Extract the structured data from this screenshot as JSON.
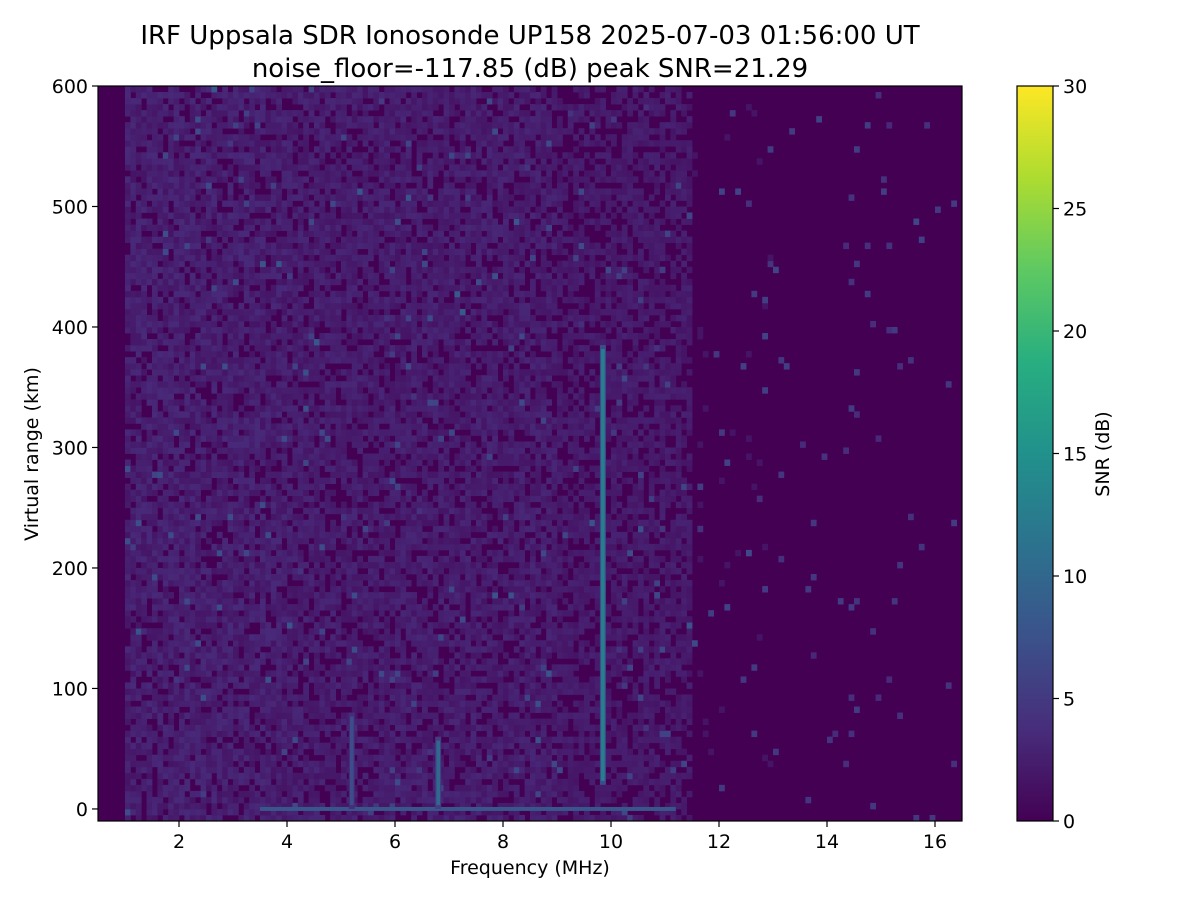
{
  "chart_data": {
    "type": "heatmap",
    "title_line1": "IRF Uppsala SDR Ionosonde UP158 2025-07-03 01:56:00  UT",
    "title_line2": "noise_floor=-117.85 (dB) peak SNR=21.29",
    "xlabel": "Frequency (MHz)",
    "ylabel": "Virtual range (km)",
    "xlim": [
      0.5,
      16.5
    ],
    "ylim": [
      -10,
      600
    ],
    "xticks": [
      2,
      4,
      6,
      8,
      10,
      12,
      14,
      16
    ],
    "yticks": [
      0,
      100,
      200,
      300,
      400,
      500,
      600
    ],
    "colorbar": {
      "label": "SNR (dB)",
      "colormap": "viridis",
      "range": [
        0,
        30
      ],
      "ticks": [
        0,
        5,
        10,
        15,
        20,
        25,
        30
      ]
    },
    "noise_floor_db": -117.85,
    "peak_snr_db": 21.29,
    "features": [
      {
        "name": "strong echo trace",
        "freq_mhz": 9.85,
        "range_km": [
          20,
          385
        ],
        "snr_db": 13
      },
      {
        "name": "ground-level echoes",
        "freq_mhz": [
          3.5,
          11.2
        ],
        "range_km": 0,
        "snr_db": 8
      },
      {
        "name": "near-range echo",
        "freq_mhz": 6.8,
        "range_km": [
          0,
          60
        ],
        "snr_db": 10
      },
      {
        "name": "near-range echo",
        "freq_mhz": 5.2,
        "range_km": [
          0,
          80
        ],
        "snr_db": 7
      }
    ],
    "quiet_band_mhz": [
      [
        0.5,
        1.0
      ],
      [
        16.5,
        16.5
      ]
    ]
  }
}
